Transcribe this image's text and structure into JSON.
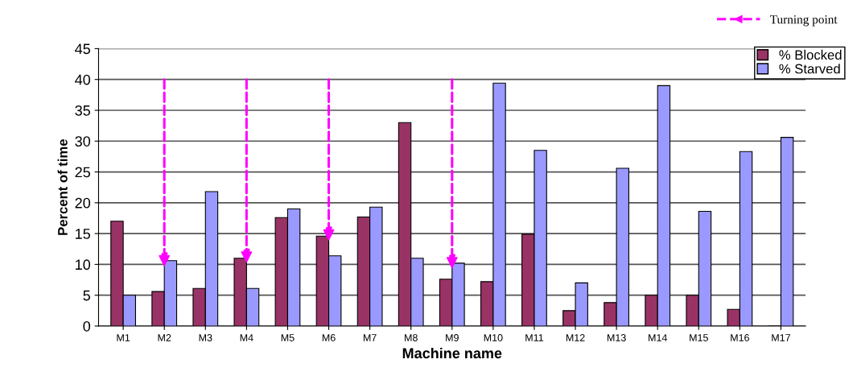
{
  "chart_data": {
    "type": "bar",
    "xlabel": "Machine name",
    "ylabel": "Percent of time",
    "categories": [
      "M1",
      "M2",
      "M3",
      "M4",
      "M5",
      "M6",
      "M7",
      "M8",
      "M9",
      "M10",
      "M11",
      "M12",
      "M13",
      "M14",
      "M15",
      "M16",
      "M17"
    ],
    "series": [
      {
        "name": "% Blocked",
        "color": "#993366",
        "values": [
          17,
          5.6,
          6.1,
          11,
          17.6,
          14.6,
          17.7,
          33,
          7.6,
          7.2,
          14.9,
          2.5,
          3.8,
          5,
          5,
          2.7,
          0
        ]
      },
      {
        "name": "% Starved",
        "color": "#9999ff",
        "values": [
          5,
          10.6,
          21.8,
          6.1,
          19,
          11.4,
          19.3,
          11,
          10.2,
          39.4,
          28.5,
          7,
          25.6,
          39,
          18.6,
          28.3,
          30.6
        ]
      },
      {
        "name": "Turning point",
        "type": "scatter",
        "color": "#ff00ff",
        "marker": "triangle",
        "line_style": "dashed",
        "values": [
          null,
          10.6,
          null,
          11.2,
          null,
          14.8,
          null,
          null,
          10.3,
          null,
          null,
          null,
          null,
          null,
          null,
          null,
          null
        ]
      }
    ],
    "ylim": [
      0,
      45
    ],
    "yticks": [
      0,
      5,
      10,
      15,
      20,
      25,
      30,
      35,
      40,
      45
    ],
    "grid": "y",
    "legend": "top right"
  }
}
